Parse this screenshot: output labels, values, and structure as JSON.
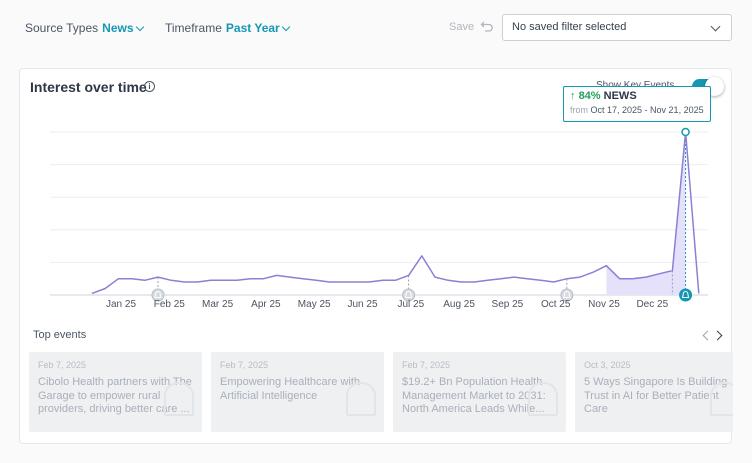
{
  "filters": {
    "source_types": {
      "label": "Source Types",
      "value": "News"
    },
    "timeframe": {
      "label": "Timeframe",
      "value": "Past Year"
    }
  },
  "toolbar": {
    "save_label": "Save"
  },
  "saved_filter": {
    "value": "No saved filter selected"
  },
  "card": {
    "title": "Interest over time",
    "key_events_label": "Show Key Events",
    "key_events_on": true
  },
  "tooltip": {
    "arrow": "↑",
    "percent": "84%",
    "label": "NEWS",
    "from_label": "from",
    "range": "Oct 17, 2025 - Nov 21, 2025"
  },
  "chart_data": {
    "type": "line",
    "x_tick_labels": [
      "Jan 25",
      "Feb 25",
      "Mar 25",
      "Apr 25",
      "May 25",
      "Jun 25",
      "Jul 25",
      "Aug 25",
      "Sep 25",
      "Oct 25",
      "Nov 25",
      "Dec 25"
    ],
    "values": [
      1,
      4,
      10,
      10,
      9,
      11,
      9,
      8,
      8,
      9,
      9,
      9,
      10,
      10,
      12,
      11,
      10,
      9,
      8,
      8,
      8,
      8,
      9,
      9,
      12,
      24,
      11,
      9,
      8,
      8,
      9,
      10,
      11,
      10,
      9,
      8,
      10,
      11,
      14,
      18,
      10,
      10,
      11,
      13,
      15,
      100,
      1
    ],
    "highlight_range": [
      39,
      45
    ],
    "peak_index": 45,
    "event_markers": [
      5,
      24,
      36,
      44
    ],
    "ylim": [
      0,
      100
    ],
    "grid": true,
    "line_color": "#8b7fd6",
    "fill_color": "#e6e1fa",
    "marker_color": "#1597b4"
  },
  "top_events": {
    "label": "Top events",
    "items": [
      {
        "date": "Feb 7, 2025",
        "title": "Cibolo Health partners with The Garage to empower rural providers, driving better care ..."
      },
      {
        "date": "Feb 7, 2025",
        "title": "Empowering Healthcare with Artificial Intelligence"
      },
      {
        "date": "Feb 7, 2025",
        "title": "$19.2+ Bn Population Health Management Market to 2031: North America Leads While..."
      },
      {
        "date": "Oct 3, 2025",
        "title": "5 Ways Singapore Is Building Trust in AI for Better Patient Care"
      }
    ]
  }
}
